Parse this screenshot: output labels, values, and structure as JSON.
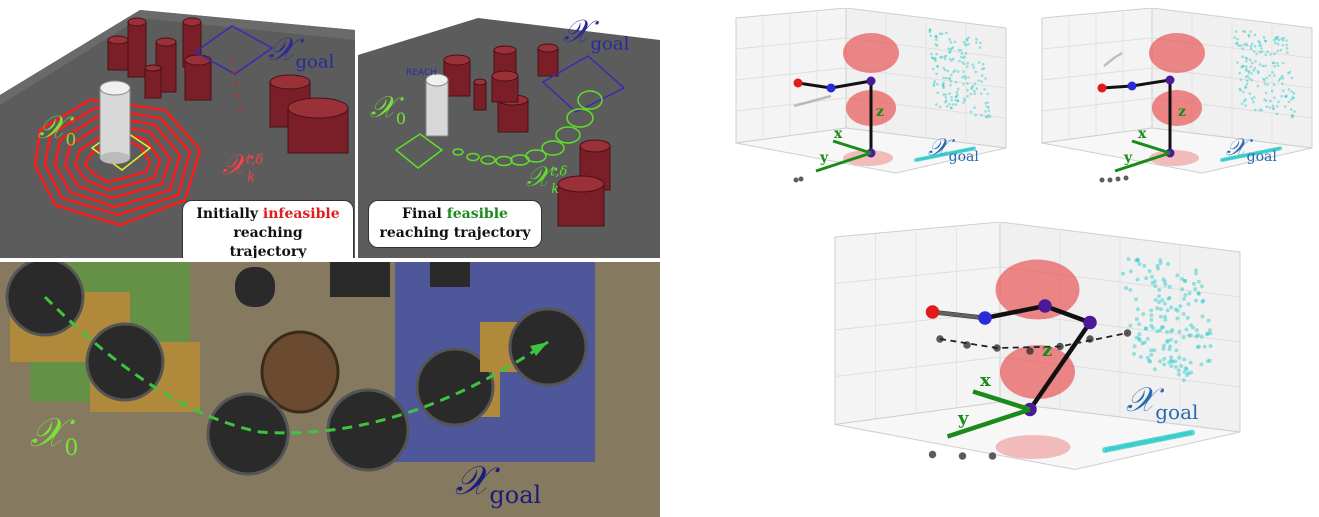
{
  "sim_left": {
    "label_x0": "𝒳",
    "label_x0_sub": "0",
    "label_goal": "𝒳",
    "label_goal_sub": "goal",
    "label_reach": "𝒳",
    "label_reach_sup": "t,δ",
    "label_reach_sub": "k",
    "caption_line1_a": "Initially ",
    "caption_line1_b": "infeasible",
    "caption_line2": "reaching trajectory"
  },
  "sim_right": {
    "label_x0": "𝒳",
    "label_x0_sub": "0",
    "label_goal": "𝒳",
    "label_goal_sub": "goal",
    "label_reach": "𝒳",
    "label_reach_sup": "t,δ",
    "label_reach_sub": "k",
    "reach_text": "REACH",
    "caption_line1_a": "Final ",
    "caption_line1_b": "feasible",
    "caption_line2": "reaching trajectory"
  },
  "photo": {
    "label_x0": "𝒳",
    "label_x0_sub": "0",
    "label_goal": "𝒳",
    "label_goal_sub": "goal"
  },
  "plot_small_1": {
    "axis_x": "x",
    "axis_y": "y",
    "axis_z": "z",
    "label_goal": "𝒳",
    "label_goal_sub": "goal"
  },
  "plot_small_2": {
    "axis_x": "x",
    "axis_y": "y",
    "axis_z": "z",
    "label_goal": "𝒳",
    "label_goal_sub": "goal"
  },
  "plot_large": {
    "axis_x": "x",
    "axis_y": "y",
    "axis_z": "z",
    "label_goal": "𝒳",
    "label_goal_sub": "goal"
  },
  "colors": {
    "table": "#5c5c5c",
    "obstacle": "#7a1f28",
    "reach_red": "#ff1a1a",
    "reach_green": "#5ee02a",
    "goal_blue": "#2a2a9a",
    "x0_green": "#7ce03a",
    "cyan": "#22c8c8",
    "ellipse_red": "#e84a4a",
    "link_blue": "#2a2ad8",
    "axis_green": "#1a8a1a"
  }
}
